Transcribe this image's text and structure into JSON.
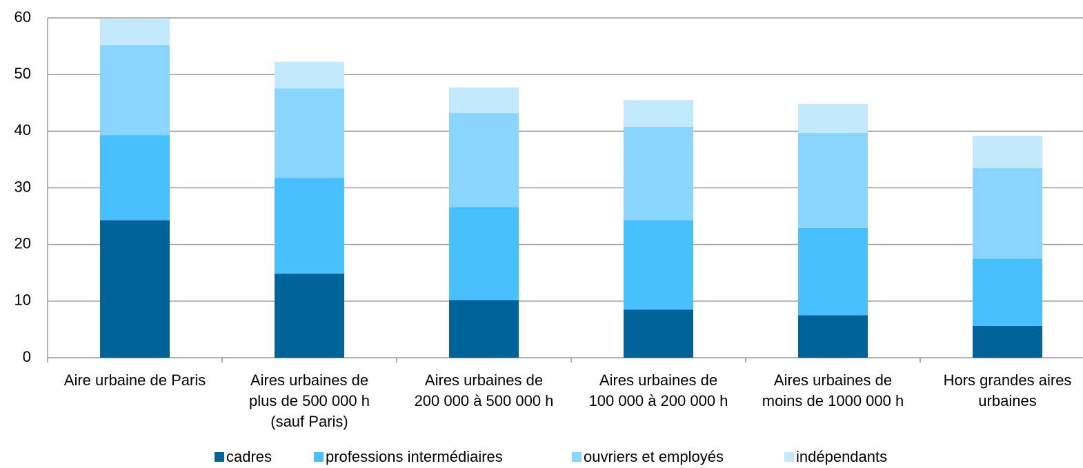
{
  "chart_data": {
    "type": "stacked_bar",
    "categories": [
      "Aire urbaine de Paris",
      "Aires urbaines de\nplus de 500 000 h\n(sauf Paris)",
      "Aires urbaines de\n200 000 à 500 000 h",
      "Aires urbaines de\n100 000 à 200 000 h",
      "Aires urbaines de\nmoins de 1000 000 h",
      "Hors grandes aires\nurbaines"
    ],
    "series": [
      {
        "name": "cadres",
        "color": "#00649a",
        "values": [
          24.3,
          14.85,
          10.2,
          8.5,
          7.5,
          5.6
        ]
      },
      {
        "name": "professions intermédiaires",
        "color": "#48c0fe",
        "values": [
          15.0,
          16.9,
          16.4,
          15.8,
          15.4,
          11.9
        ]
      },
      {
        "name": "ouvriers et employés",
        "color": "#8ad5fe",
        "values": [
          15.9,
          15.8,
          16.6,
          16.5,
          16.8,
          16.0
        ]
      },
      {
        "name": "indépendants",
        "color": "#c3e9fe",
        "values": [
          4.6,
          4.7,
          4.5,
          4.7,
          5.1,
          5.7
        ]
      }
    ],
    "ylim": [
      0,
      60
    ],
    "yticks": [
      0,
      10,
      20,
      30,
      40,
      50,
      60
    ],
    "grid": true,
    "legend": "bottom"
  }
}
